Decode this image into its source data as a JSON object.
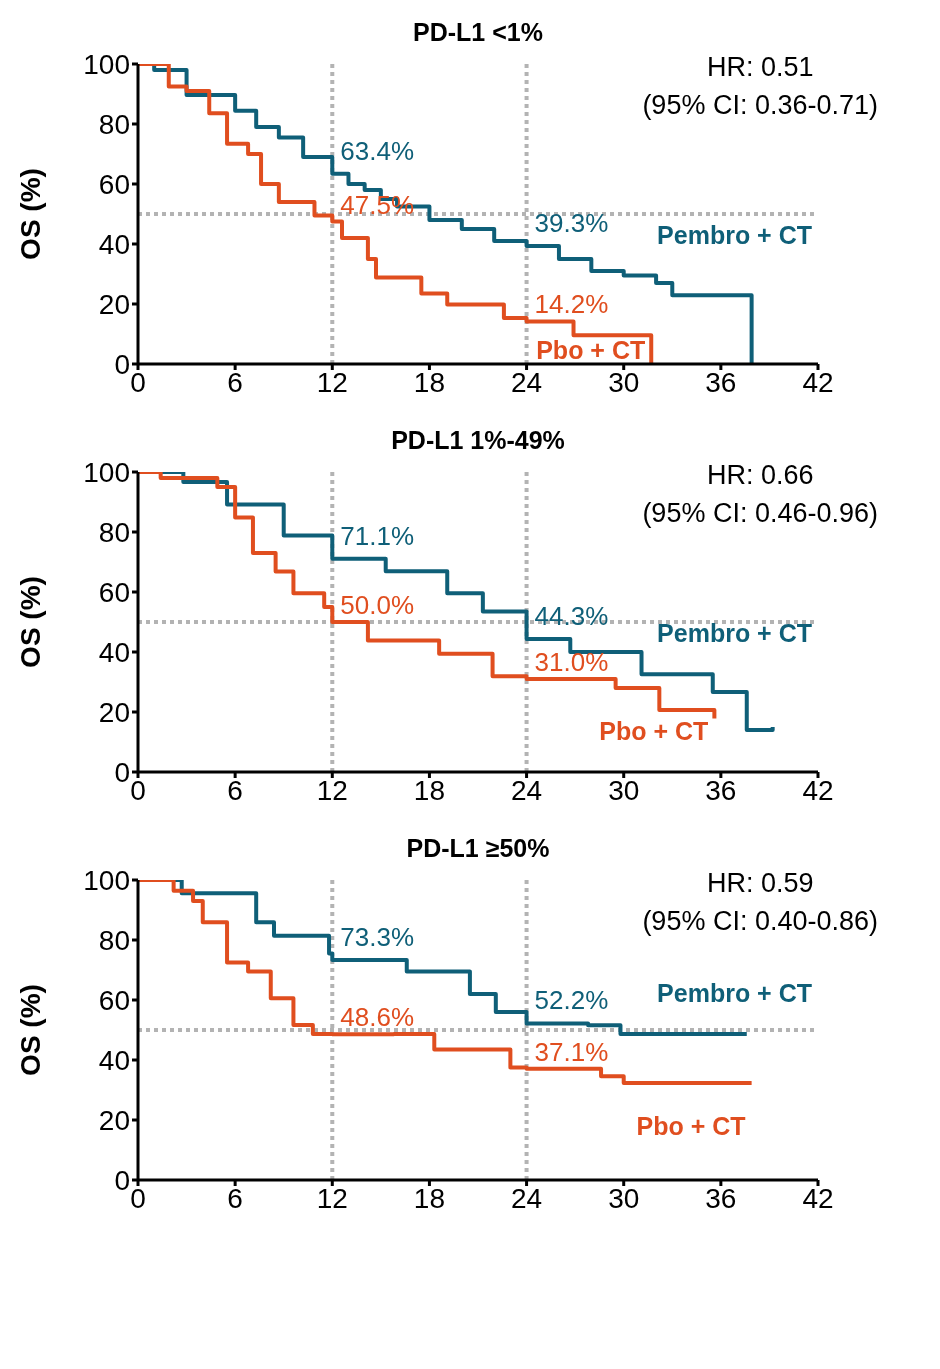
{
  "chart_data": [
    {
      "type": "step",
      "title": "PD-L1 <1%",
      "ylabel": "OS (%)",
      "xlim": [
        0,
        42
      ],
      "xticks": [
        0,
        6,
        12,
        18,
        24,
        30,
        36,
        42
      ],
      "ylim": [
        0,
        100
      ],
      "yticks": [
        0,
        20,
        40,
        60,
        80,
        100
      ],
      "grid": false,
      "legend": false,
      "annotations": [
        "HR: 0.51",
        "(95% CI: 0.36-0.71)"
      ],
      "ref_lines": [
        {
          "axis": "x",
          "value": 12,
          "color": "#b3b3b3",
          "line_style": "dotted"
        },
        {
          "axis": "x",
          "value": 24,
          "color": "#b3b3b3",
          "line_style": "dotted"
        },
        {
          "axis": "y",
          "value": 50,
          "color": "#b3b3b3",
          "line_style": "dotted"
        }
      ],
      "series": [
        {
          "name": "Pembro + CT",
          "color": "#0f5f78",
          "x": [
            0,
            1,
            3,
            6,
            7.3,
            8.7,
            10.2,
            12,
            13,
            14,
            15,
            16,
            18,
            20,
            22,
            24,
            26,
            28,
            30,
            32,
            33,
            37.9,
            37.9
          ],
          "values": [
            100,
            98,
            89.7,
            84.4,
            79,
            75.5,
            69,
            63.4,
            60,
            58,
            55,
            52.5,
            48,
            45,
            41,
            39.3,
            35,
            31,
            29.5,
            27,
            22.9,
            22.9,
            0
          ],
          "value_labels": [
            null,
            null,
            null,
            null,
            null,
            null,
            null,
            "63.4%",
            null,
            null,
            null,
            null,
            null,
            null,
            null,
            "39.3%",
            null,
            null,
            null,
            null,
            null,
            null,
            null
          ]
        },
        {
          "name": "Pbo + CT",
          "color": "#e04e1f",
          "x": [
            0,
            1.9,
            3,
            4.4,
            5.5,
            6.8,
            7.6,
            8.7,
            10.9,
            12,
            12.6,
            14.2,
            14.7,
            17.5,
            19.1,
            22.6,
            24,
            26.9,
            31.7,
            31.7
          ],
          "values": [
            100,
            92.5,
            91,
            83.6,
            73.4,
            70,
            60,
            54,
            49.5,
            47.5,
            42,
            35,
            28.8,
            23.5,
            19.8,
            15.3,
            14.2,
            9.6,
            9.6,
            0
          ],
          "value_labels": [
            null,
            null,
            null,
            null,
            null,
            null,
            null,
            null,
            null,
            "47.5%",
            null,
            null,
            null,
            null,
            null,
            null,
            "14.2%",
            null,
            null,
            null
          ]
        }
      ]
    },
    {
      "type": "step",
      "title": "PD-L1 1%-49%",
      "ylabel": "OS (%)",
      "xlim": [
        0,
        42
      ],
      "xticks": [
        0,
        6,
        12,
        18,
        24,
        30,
        36,
        42
      ],
      "ylim": [
        0,
        100
      ],
      "yticks": [
        0,
        20,
        40,
        60,
        80,
        100
      ],
      "grid": false,
      "legend": false,
      "annotations": [
        "HR: 0.66",
        "(95% CI: 0.46-0.96)"
      ],
      "ref_lines": [
        {
          "axis": "x",
          "value": 12,
          "color": "#b3b3b3",
          "line_style": "dotted"
        },
        {
          "axis": "x",
          "value": 24,
          "color": "#b3b3b3",
          "line_style": "dotted"
        },
        {
          "axis": "y",
          "value": 50,
          "color": "#b3b3b3",
          "line_style": "dotted"
        }
      ],
      "series": [
        {
          "name": "Pembro + CT",
          "color": "#0f5f78",
          "x": [
            0,
            2.8,
            5.5,
            9,
            12,
            15.3,
            19.1,
            21.3,
            24,
            26.7,
            31.1,
            35.5,
            37.6,
            39.2
          ],
          "values": [
            100,
            96.7,
            89.2,
            78.8,
            71.1,
            66.9,
            59.6,
            53.5,
            44.3,
            40,
            32.6,
            26.7,
            14,
            15
          ],
          "value_labels": [
            null,
            null,
            null,
            null,
            "71.1%",
            null,
            null,
            null,
            "44.3%",
            null,
            null,
            null,
            null,
            null
          ]
        },
        {
          "name": "Pbo + CT",
          "color": "#e04e1f",
          "x": [
            0,
            1.4,
            4.9,
            6,
            7.1,
            8.5,
            9.6,
            11.5,
            12,
            14.2,
            18.6,
            21.9,
            24,
            29.5,
            32.2,
            35.6
          ],
          "values": [
            100,
            98,
            95,
            84.8,
            73,
            66.8,
            59.6,
            55,
            50.0,
            43.8,
            39.4,
            31.9,
            31.0,
            28,
            20.7,
            17.8
          ],
          "value_labels": [
            null,
            null,
            null,
            null,
            null,
            null,
            null,
            null,
            "50.0%",
            null,
            null,
            null,
            "31.0%",
            null,
            null,
            null
          ]
        }
      ]
    },
    {
      "type": "step",
      "title": "PD-L1 ≥50%",
      "ylabel": "OS (%)",
      "xlim": [
        0,
        42
      ],
      "xticks": [
        0,
        6,
        12,
        18,
        24,
        30,
        36,
        42
      ],
      "ylim": [
        0,
        100
      ],
      "yticks": [
        0,
        20,
        40,
        60,
        80,
        100
      ],
      "grid": false,
      "legend": false,
      "annotations": [
        "HR: 0.59",
        "(95% CI: 0.40-0.86)"
      ],
      "ref_lines": [
        {
          "axis": "x",
          "value": 12,
          "color": "#b3b3b3",
          "line_style": "dotted"
        },
        {
          "axis": "x",
          "value": 24,
          "color": "#b3b3b3",
          "line_style": "dotted"
        },
        {
          "axis": "y",
          "value": 50,
          "color": "#b3b3b3",
          "line_style": "dotted"
        }
      ],
      "series": [
        {
          "name": "Pembro + CT",
          "color": "#0f5f78",
          "x": [
            0,
            2.7,
            7.3,
            8.4,
            11.8,
            12,
            16.6,
            20.5,
            22.1,
            24,
            27.8,
            29.8,
            37.6
          ],
          "values": [
            100,
            95.6,
            85.9,
            81.4,
            75.5,
            73.3,
            69.5,
            62,
            56,
            52.2,
            51.6,
            48.7,
            48.7
          ],
          "value_labels": [
            null,
            null,
            null,
            null,
            null,
            "73.3%",
            null,
            null,
            null,
            "52.2%",
            null,
            null,
            null
          ]
        },
        {
          "name": "Pbo + CT",
          "color": "#e04e1f",
          "x": [
            0,
            2.2,
            3.4,
            4,
            5.5,
            6.8,
            8.2,
            9.6,
            10.8,
            12,
            15.8,
            18.3,
            23,
            24,
            28.6,
            30,
            37.9
          ],
          "values": [
            100,
            96.4,
            93,
            85.9,
            72.5,
            69.5,
            60.6,
            51.7,
            48.7,
            48.6,
            48.7,
            43.5,
            37.5,
            37.1,
            34.6,
            32.3,
            32.3
          ],
          "value_labels": [
            null,
            null,
            null,
            null,
            null,
            null,
            null,
            null,
            null,
            "48.6%",
            null,
            null,
            null,
            "37.1%",
            null,
            null,
            null
          ]
        }
      ]
    }
  ]
}
